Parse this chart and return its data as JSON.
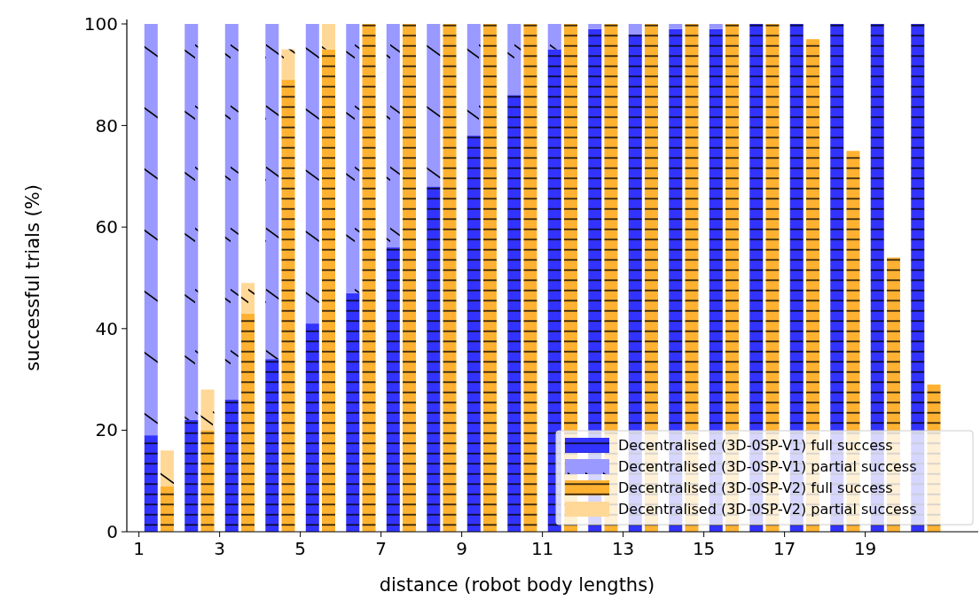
{
  "chart_data": {
    "type": "bar",
    "xlabel": "distance (robot body lengths)",
    "ylabel": "successful trials (%)",
    "xlim": [
      0.7,
      21.8
    ],
    "xticks": [
      1,
      3,
      5,
      7,
      9,
      11,
      13,
      15,
      17,
      19
    ],
    "ylim": [
      0,
      100
    ],
    "yticks": [
      0,
      20,
      40,
      60,
      80,
      100
    ],
    "stacked": true,
    "grid": false,
    "legend": "bottom right",
    "x": [
      1.3,
      1.7,
      2.3,
      2.7,
      3.3,
      3.7,
      4.3,
      4.7,
      5.3,
      5.7,
      6.3,
      6.7,
      7.3,
      7.7,
      8.3,
      8.7,
      9.3,
      9.7,
      10.3,
      10.7,
      11.3,
      11.7,
      12.3,
      12.7,
      13.3,
      13.7,
      14.3,
      14.7,
      15.3,
      15.7,
      16.3,
      16.7,
      17.3,
      17.7,
      18.3,
      18.7,
      19.3,
      19.7,
      20.3,
      20.7
    ],
    "series": [
      {
        "name": "Decentralised (3D-0SP-V1) full success",
        "color": "#3333ff",
        "values": [
          19,
          null,
          22,
          null,
          26,
          null,
          34,
          null,
          41,
          null,
          47,
          null,
          56,
          null,
          68,
          null,
          78,
          null,
          86,
          null,
          95,
          null,
          99,
          null,
          98,
          null,
          99,
          null,
          99,
          null,
          100,
          null,
          100,
          null,
          100,
          null,
          100,
          null,
          100,
          null
        ]
      },
      {
        "name": "Decentralised (3D-0SP-V1) partial success",
        "color": "#9999ff",
        "values": [
          81,
          null,
          78,
          null,
          74,
          null,
          66,
          null,
          59,
          null,
          53,
          null,
          44,
          null,
          32,
          null,
          22,
          null,
          14,
          null,
          5,
          null,
          1,
          null,
          2,
          null,
          1,
          null,
          1,
          null,
          0,
          null,
          0,
          null,
          0,
          null,
          0,
          null,
          0,
          null
        ]
      },
      {
        "name": "Decentralised (3D-0SP-V2) full success",
        "color": "#ffb232",
        "values": [
          null,
          9,
          null,
          20,
          null,
          43,
          null,
          89,
          null,
          95,
          null,
          100,
          null,
          100,
          null,
          100,
          null,
          100,
          null,
          100,
          null,
          100,
          null,
          100,
          null,
          100,
          null,
          100,
          null,
          100,
          null,
          100,
          null,
          97,
          null,
          75,
          null,
          54,
          null,
          29
        ]
      },
      {
        "name": "Decentralised (3D-0SP-V2) partial success",
        "color": "#ffd898",
        "values": [
          null,
          7,
          null,
          8,
          null,
          6,
          null,
          6,
          null,
          5,
          null,
          0,
          null,
          0,
          null,
          0,
          null,
          0,
          null,
          0,
          null,
          0,
          null,
          0,
          null,
          0,
          null,
          0,
          null,
          0,
          null,
          0,
          null,
          0,
          null,
          0,
          null,
          0,
          null,
          0
        ]
      }
    ]
  }
}
